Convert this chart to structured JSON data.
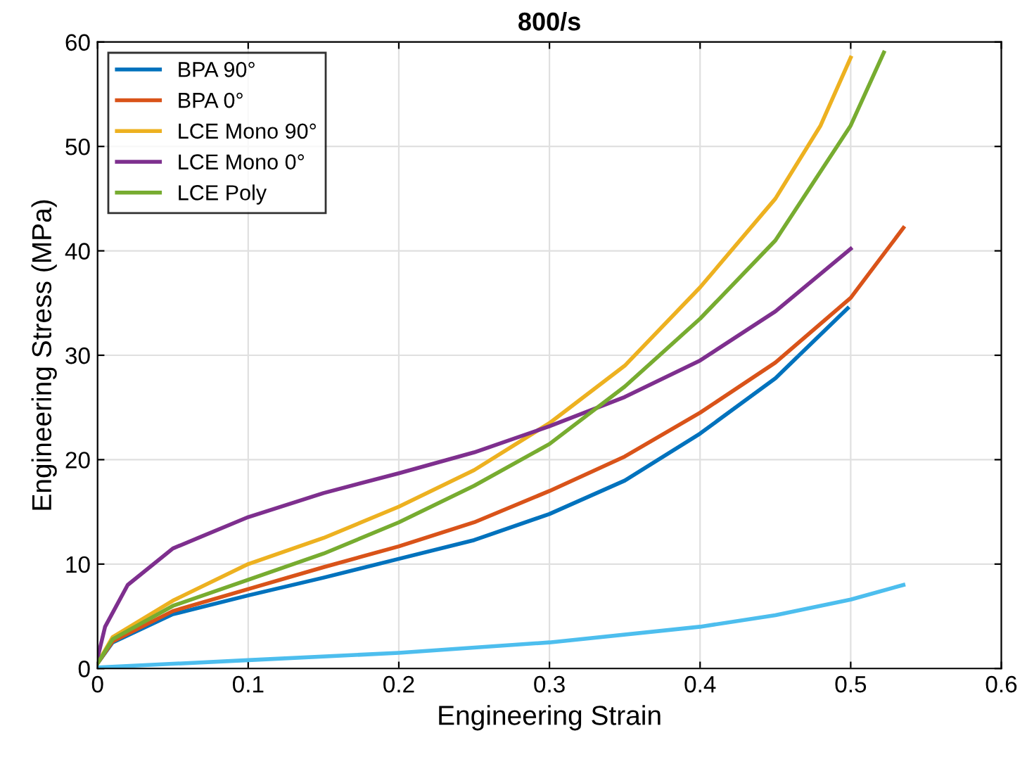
{
  "chart_data": {
    "type": "line",
    "title": "800/s",
    "xlabel": "Engineering Strain",
    "ylabel": "Engineering Stress (MPa)",
    "xlim": [
      0,
      0.6
    ],
    "ylim": [
      0,
      60
    ],
    "xticks": [
      0,
      0.1,
      0.2,
      0.3,
      0.4,
      0.5,
      0.6
    ],
    "yticks": [
      0,
      10,
      20,
      30,
      40,
      50,
      60
    ],
    "grid": true,
    "legend": "top left",
    "marker": "none",
    "line_style": "solid",
    "series": [
      {
        "name": "BPA 90°",
        "color": "#0072bd",
        "x": [
          0,
          0.01,
          0.05,
          0.1,
          0.15,
          0.2,
          0.25,
          0.3,
          0.35,
          0.4,
          0.45,
          0.498
        ],
        "values": [
          0.5,
          2.5,
          5.2,
          7.0,
          8.7,
          10.5,
          12.3,
          14.8,
          18,
          22.5,
          27.8,
          34.5
        ]
      },
      {
        "name": "BPA 0°",
        "color": "#d95319",
        "x": [
          0,
          0.01,
          0.05,
          0.1,
          0.15,
          0.2,
          0.25,
          0.3,
          0.35,
          0.4,
          0.45,
          0.5,
          0.535
        ],
        "values": [
          0.5,
          2.6,
          5.5,
          7.6,
          9.7,
          11.7,
          14,
          17,
          20.3,
          24.5,
          29.3,
          35.5,
          42.2
        ]
      },
      {
        "name": "LCE Mono 90°",
        "color": "#edb120",
        "x": [
          0,
          0.01,
          0.05,
          0.1,
          0.15,
          0.2,
          0.25,
          0.3,
          0.35,
          0.4,
          0.45,
          0.48,
          0.5
        ],
        "values": [
          0.5,
          3,
          6.5,
          10,
          12.5,
          15.5,
          19,
          23.5,
          29,
          36.5,
          45,
          52,
          58.5
        ]
      },
      {
        "name": "LCE Mono 0°",
        "color": "#7e2f8e",
        "x": [
          0,
          0.005,
          0.02,
          0.05,
          0.1,
          0.15,
          0.2,
          0.25,
          0.3,
          0.35,
          0.4,
          0.45,
          0.5
        ],
        "values": [
          1,
          4,
          8,
          11.5,
          14.5,
          16.8,
          18.7,
          20.7,
          23.2,
          26,
          29.5,
          34.2,
          40.2
        ]
      },
      {
        "name": "LCE Poly",
        "color": "#77ac30",
        "x": [
          0,
          0.01,
          0.05,
          0.1,
          0.15,
          0.2,
          0.25,
          0.3,
          0.35,
          0.4,
          0.45,
          0.5,
          0.522
        ],
        "values": [
          0.5,
          2.8,
          6,
          8.5,
          11,
          14,
          17.5,
          21.5,
          27,
          33.5,
          41,
          52,
          59
        ]
      },
      {
        "color": "#4dbeee",
        "x": [
          0,
          0.1,
          0.2,
          0.3,
          0.4,
          0.45,
          0.5,
          0.535
        ],
        "values": [
          0.1,
          0.8,
          1.5,
          2.5,
          4,
          5.1,
          6.6,
          8
        ]
      }
    ]
  }
}
